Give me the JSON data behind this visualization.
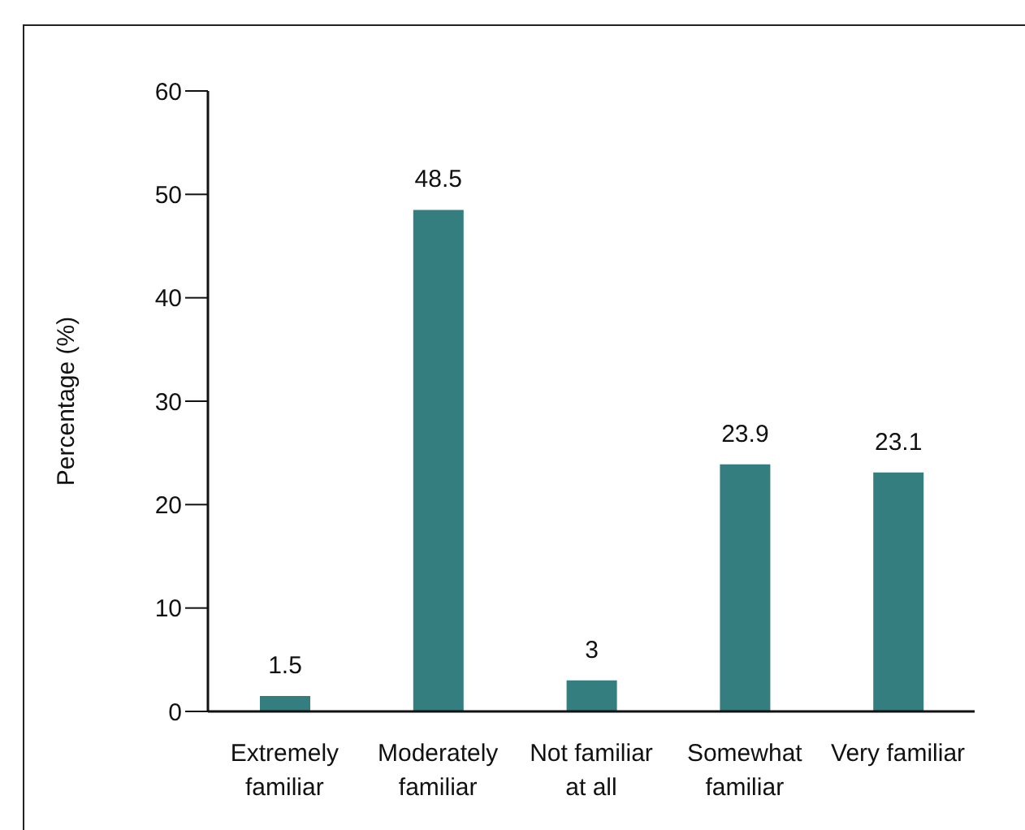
{
  "chart_data": {
    "type": "bar",
    "ylabel": "Percentage (%)",
    "categories": [
      "Extremely familiar",
      "Moderately familiar",
      "Not familiar at all",
      "Somewhat familiar",
      "Very familiar"
    ],
    "values": [
      1.5,
      48.5,
      3,
      23.9,
      23.1
    ],
    "color": "#347e80",
    "ylim": [
      0,
      60
    ],
    "yticks": [
      0,
      10,
      20,
      30,
      40,
      50,
      60
    ],
    "grid": false,
    "data_labels": true
  }
}
